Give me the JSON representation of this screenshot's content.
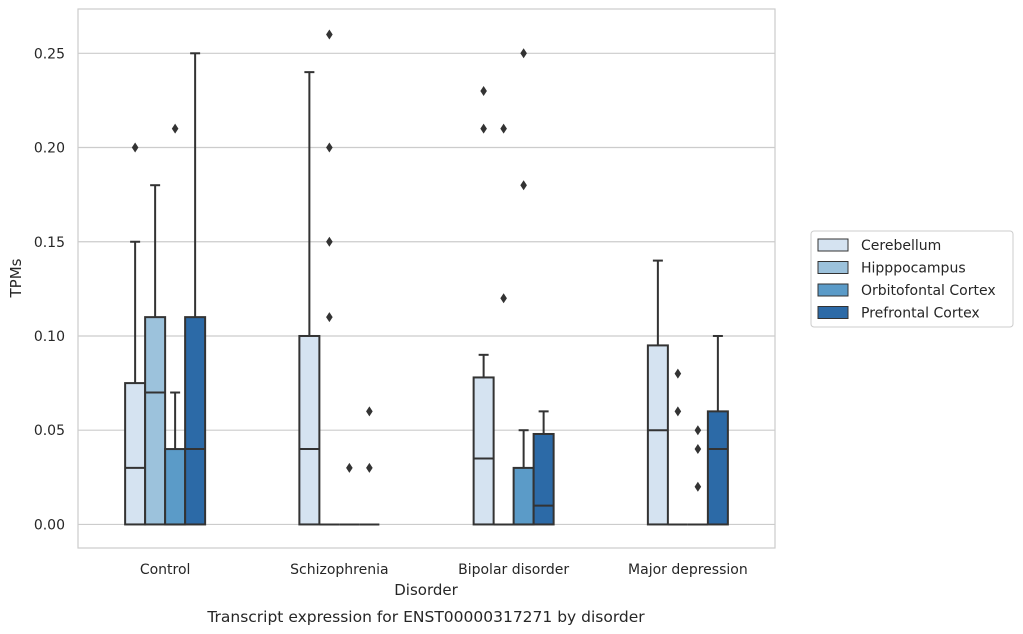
{
  "chart_data": {
    "type": "boxplot",
    "title": "",
    "caption": "Transcript expression for ENST00000317271 by disorder",
    "xlabel": "Disorder",
    "ylabel": "TPMs",
    "ylim": [
      -0.0125,
      0.2735
    ],
    "yticks": [
      "0.00",
      "0.05",
      "0.10",
      "0.15",
      "0.20",
      "0.25"
    ],
    "ytick_values": [
      0,
      0.05,
      0.1,
      0.15,
      0.2,
      0.25
    ],
    "categories": [
      "Control",
      "Schizophrenia",
      "Bipolar disorder",
      "Major depression"
    ],
    "grid": "horizontal",
    "legend_position": "right",
    "series": [
      {
        "name": "Cerebellum",
        "color": "#d5e3f1",
        "boxes": [
          {
            "whisker_low": 0,
            "q1": 0,
            "median": 0.03,
            "q3": 0.075,
            "whisker_high": 0.15,
            "outliers": [
              0.2
            ]
          },
          {
            "whisker_low": 0,
            "q1": 0,
            "median": 0.04,
            "q3": 0.1,
            "whisker_high": 0.24,
            "outliers": []
          },
          {
            "whisker_low": 0,
            "q1": 0,
            "median": 0.035,
            "q3": 0.078,
            "whisker_high": 0.09,
            "outliers": [
              0.21,
              0.23
            ]
          },
          {
            "whisker_low": 0,
            "q1": 0,
            "median": 0.05,
            "q3": 0.095,
            "whisker_high": 0.14,
            "outliers": []
          }
        ]
      },
      {
        "name": "Hipppocampus",
        "color": "#9cc2dc",
        "boxes": [
          {
            "whisker_low": 0,
            "q1": 0,
            "median": 0.07,
            "q3": 0.11,
            "whisker_high": 0.18,
            "outliers": []
          },
          {
            "whisker_low": 0,
            "q1": 0,
            "median": 0,
            "q3": 0,
            "whisker_high": 0,
            "outliers": [
              0.11,
              0.15,
              0.2,
              0.26
            ]
          },
          {
            "whisker_low": 0,
            "q1": 0,
            "median": 0,
            "q3": 0,
            "whisker_high": 0,
            "outliers": [
              0.12,
              0.21
            ]
          },
          {
            "whisker_low": 0,
            "q1": 0,
            "median": 0,
            "q3": 0,
            "whisker_high": 0,
            "outliers": [
              0.06,
              0.08
            ]
          }
        ]
      },
      {
        "name": "Orbitofontal Cortex",
        "color": "#5b9bc8",
        "boxes": [
          {
            "whisker_low": 0,
            "q1": 0,
            "median": 0,
            "q3": 0.04,
            "whisker_high": 0.07,
            "outliers": [
              0.21
            ]
          },
          {
            "whisker_low": 0,
            "q1": 0,
            "median": 0,
            "q3": 0,
            "whisker_high": 0,
            "outliers": [
              0.03
            ]
          },
          {
            "whisker_low": 0,
            "q1": 0,
            "median": 0,
            "q3": 0.03,
            "whisker_high": 0.05,
            "outliers": [
              0.18,
              0.25
            ]
          },
          {
            "whisker_low": 0,
            "q1": 0,
            "median": 0,
            "q3": 0,
            "whisker_high": 0,
            "outliers": [
              0.02,
              0.04,
              0.05
            ]
          }
        ]
      },
      {
        "name": "Prefrontal Cortex",
        "color": "#2c6aa7",
        "boxes": [
          {
            "whisker_low": 0,
            "q1": 0,
            "median": 0.04,
            "q3": 0.11,
            "whisker_high": 0.25,
            "outliers": []
          },
          {
            "whisker_low": 0,
            "q1": 0,
            "median": 0,
            "q3": 0,
            "whisker_high": 0,
            "outliers": [
              0.03,
              0.06
            ]
          },
          {
            "whisker_low": 0,
            "q1": 0,
            "median": 0.01,
            "q3": 0.048,
            "whisker_high": 0.06,
            "outliers": []
          },
          {
            "whisker_low": 0,
            "q1": 0,
            "median": 0.04,
            "q3": 0.06,
            "whisker_high": 0.1,
            "outliers": []
          }
        ]
      }
    ],
    "colors": {
      "grid": "#cccccc",
      "frame": "#cccccc",
      "line": "#333333",
      "text": "#262626"
    }
  }
}
